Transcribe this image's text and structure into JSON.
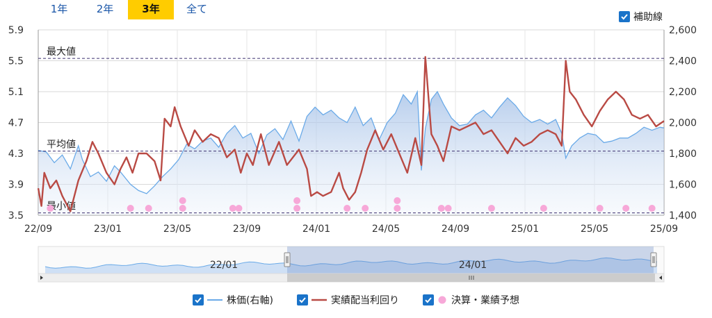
{
  "tabs": [
    "1年",
    "2年",
    "3年",
    "全て"
  ],
  "active_tab": 2,
  "aux_lines_label": "補助線",
  "legend": {
    "price": "株価(右軸)",
    "yield": "実績配当利回り",
    "events": "決算・業績予想"
  },
  "colors": {
    "price_line": "#6aaae8",
    "price_fill": "#c9daf0",
    "yield_line": "#b94a44",
    "events": "#f7a8d8",
    "ref_line": "#3b2e6e",
    "checkbox": "#1a73c9",
    "active_tab": "#ffcc00"
  },
  "chart_data": {
    "type": "line",
    "x_ticks": [
      "22/09",
      "23/01",
      "23/05",
      "23/09",
      "24/01",
      "24/05",
      "24/09",
      "25/01",
      "25/05",
      "25/09"
    ],
    "y_left": {
      "min": 3.5,
      "max": 5.9,
      "ticks": [
        "3.5",
        "3.9",
        "4.3",
        "4.7",
        "5.1",
        "5.5",
        "5.9"
      ]
    },
    "y_right": {
      "min": 1400,
      "max": 2600,
      "ticks": [
        "1,400",
        "1,600",
        "1,800",
        "2,000",
        "2,200",
        "2,400",
        "2,600"
      ]
    },
    "reference_lines": [
      {
        "label": "最大値",
        "value": 5.53
      },
      {
        "label": "平均値",
        "value": 4.33
      },
      {
        "label": "最小値",
        "value": 3.53
      }
    ],
    "yield_series": {
      "name": "実績配当利回り",
      "axis": "left",
      "points": [
        [
          0.0,
          3.85
        ],
        [
          0.08,
          3.62
        ],
        [
          0.15,
          4.05
        ],
        [
          0.3,
          3.85
        ],
        [
          0.45,
          3.95
        ],
        [
          0.6,
          3.75
        ],
        [
          0.8,
          3.55
        ],
        [
          1.0,
          3.95
        ],
        [
          1.2,
          4.2
        ],
        [
          1.35,
          4.45
        ],
        [
          1.5,
          4.3
        ],
        [
          1.7,
          4.05
        ],
        [
          1.9,
          3.9
        ],
        [
          2.05,
          4.1
        ],
        [
          2.2,
          4.25
        ],
        [
          2.35,
          4.05
        ],
        [
          2.5,
          4.3
        ],
        [
          2.7,
          4.3
        ],
        [
          2.9,
          4.2
        ],
        [
          3.05,
          3.95
        ],
        [
          3.15,
          4.75
        ],
        [
          3.3,
          4.65
        ],
        [
          3.4,
          4.9
        ],
        [
          3.55,
          4.65
        ],
        [
          3.75,
          4.4
        ],
        [
          3.9,
          4.6
        ],
        [
          4.1,
          4.45
        ],
        [
          4.3,
          4.55
        ],
        [
          4.5,
          4.5
        ],
        [
          4.7,
          4.25
        ],
        [
          4.9,
          4.35
        ],
        [
          5.05,
          4.05
        ],
        [
          5.2,
          4.3
        ],
        [
          5.35,
          4.15
        ],
        [
          5.55,
          4.55
        ],
        [
          5.75,
          4.15
        ],
        [
          6.0,
          4.45
        ],
        [
          6.2,
          4.15
        ],
        [
          6.5,
          4.35
        ],
        [
          6.7,
          4.1
        ],
        [
          6.8,
          3.75
        ],
        [
          6.95,
          3.8
        ],
        [
          7.1,
          3.75
        ],
        [
          7.3,
          3.8
        ],
        [
          7.5,
          4.05
        ],
        [
          7.6,
          3.85
        ],
        [
          7.75,
          3.7
        ],
        [
          7.9,
          3.8
        ],
        [
          8.05,
          4.05
        ],
        [
          8.2,
          4.35
        ],
        [
          8.4,
          4.6
        ],
        [
          8.6,
          4.35
        ],
        [
          8.8,
          4.55
        ],
        [
          9.0,
          4.3
        ],
        [
          9.2,
          4.05
        ],
        [
          9.4,
          4.5
        ],
        [
          9.55,
          4.15
        ],
        [
          9.65,
          5.55
        ],
        [
          9.8,
          4.55
        ],
        [
          9.95,
          4.4
        ],
        [
          10.1,
          4.2
        ],
        [
          10.3,
          4.65
        ],
        [
          10.5,
          4.6
        ],
        [
          10.7,
          4.65
        ],
        [
          10.9,
          4.7
        ],
        [
          11.1,
          4.55
        ],
        [
          11.3,
          4.6
        ],
        [
          11.5,
          4.45
        ],
        [
          11.7,
          4.3
        ],
        [
          11.9,
          4.5
        ],
        [
          12.1,
          4.4
        ],
        [
          12.3,
          4.45
        ],
        [
          12.5,
          4.55
        ],
        [
          12.7,
          4.6
        ],
        [
          12.9,
          4.55
        ],
        [
          13.05,
          4.4
        ],
        [
          13.15,
          5.5
        ],
        [
          13.25,
          5.1
        ],
        [
          13.4,
          5.0
        ],
        [
          13.6,
          4.8
        ],
        [
          13.8,
          4.65
        ],
        [
          14.0,
          4.85
        ],
        [
          14.2,
          5.0
        ],
        [
          14.4,
          5.1
        ],
        [
          14.6,
          5.0
        ],
        [
          14.8,
          4.8
        ],
        [
          15.0,
          4.75
        ],
        [
          15.2,
          4.8
        ],
        [
          15.4,
          4.65
        ],
        [
          15.6,
          4.72
        ]
      ]
    },
    "price_series": {
      "name": "株価",
      "axis": "right",
      "points": [
        [
          0.0,
          1820
        ],
        [
          0.2,
          1810
        ],
        [
          0.4,
          1740
        ],
        [
          0.6,
          1790
        ],
        [
          0.8,
          1700
        ],
        [
          1.0,
          1850
        ],
        [
          1.1,
          1760
        ],
        [
          1.3,
          1650
        ],
        [
          1.5,
          1680
        ],
        [
          1.7,
          1620
        ],
        [
          1.9,
          1720
        ],
        [
          2.05,
          1680
        ],
        [
          2.3,
          1600
        ],
        [
          2.5,
          1560
        ],
        [
          2.7,
          1540
        ],
        [
          2.9,
          1590
        ],
        [
          3.1,
          1650
        ],
        [
          3.3,
          1700
        ],
        [
          3.5,
          1760
        ],
        [
          3.7,
          1860
        ],
        [
          3.9,
          1830
        ],
        [
          4.1,
          1880
        ],
        [
          4.3,
          1900
        ],
        [
          4.5,
          1840
        ],
        [
          4.7,
          1930
        ],
        [
          4.9,
          1980
        ],
        [
          5.1,
          1900
        ],
        [
          5.3,
          1930
        ],
        [
          5.5,
          1800
        ],
        [
          5.7,
          1920
        ],
        [
          5.9,
          1960
        ],
        [
          6.1,
          1890
        ],
        [
          6.3,
          2010
        ],
        [
          6.5,
          1880
        ],
        [
          6.7,
          2040
        ],
        [
          6.9,
          2100
        ],
        [
          7.1,
          2050
        ],
        [
          7.3,
          2080
        ],
        [
          7.5,
          2030
        ],
        [
          7.7,
          2000
        ],
        [
          7.9,
          2100
        ],
        [
          8.1,
          1980
        ],
        [
          8.3,
          2030
        ],
        [
          8.5,
          1890
        ],
        [
          8.7,
          2000
        ],
        [
          8.9,
          2060
        ],
        [
          9.1,
          2180
        ],
        [
          9.3,
          2120
        ],
        [
          9.45,
          2200
        ],
        [
          9.55,
          1690
        ],
        [
          9.65,
          1960
        ],
        [
          9.8,
          2150
        ],
        [
          9.95,
          2200
        ],
        [
          10.1,
          2120
        ],
        [
          10.3,
          2030
        ],
        [
          10.5,
          1980
        ],
        [
          10.7,
          1990
        ],
        [
          10.9,
          2050
        ],
        [
          11.1,
          2080
        ],
        [
          11.3,
          2030
        ],
        [
          11.5,
          2100
        ],
        [
          11.7,
          2160
        ],
        [
          11.9,
          2110
        ],
        [
          12.1,
          2040
        ],
        [
          12.3,
          2000
        ],
        [
          12.5,
          2020
        ],
        [
          12.7,
          1990
        ],
        [
          12.9,
          2020
        ],
        [
          13.05,
          1930
        ],
        [
          13.15,
          1770
        ],
        [
          13.3,
          1850
        ],
        [
          13.5,
          1900
        ],
        [
          13.7,
          1930
        ],
        [
          13.9,
          1920
        ],
        [
          14.1,
          1870
        ],
        [
          14.3,
          1880
        ],
        [
          14.5,
          1900
        ],
        [
          14.7,
          1900
        ],
        [
          14.9,
          1930
        ],
        [
          15.1,
          1970
        ],
        [
          15.3,
          1950
        ],
        [
          15.5,
          1970
        ],
        [
          15.6,
          1965
        ]
      ]
    },
    "events": {
      "name": "決算・業績予想",
      "values": [
        3.53,
        3.53,
        3.53,
        3.6,
        3.53,
        3.53,
        3.53,
        3.6,
        3.53,
        3.53,
        3.53,
        3.6,
        3.53,
        3.53,
        3.53,
        3.53,
        3.53,
        3.53,
        3.53,
        3.53
      ],
      "x": [
        0.3,
        2.3,
        2.75,
        3.6,
        3.6,
        4.85,
        5.0,
        6.45,
        6.45,
        7.7,
        8.15,
        8.95,
        8.95,
        10.05,
        10.22,
        11.3,
        12.6,
        14.0,
        14.65,
        15.3
      ]
    },
    "navigator": {
      "labels": [
        "22/01",
        "24/01"
      ]
    }
  }
}
